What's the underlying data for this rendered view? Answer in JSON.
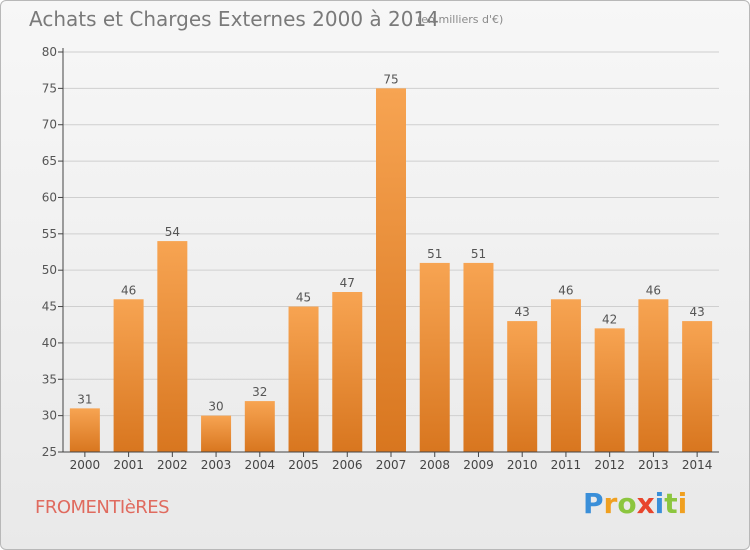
{
  "title": "Achats et Charges Externes 2000 à 2014",
  "subtitle": "(en milliers d'€)",
  "commune": "FROMENTIèRES",
  "brand": {
    "letters": [
      {
        "ch": "P",
        "color": "#3a8fd9"
      },
      {
        "ch": "r",
        "color": "#f0a020"
      },
      {
        "ch": "o",
        "color": "#8cc63f"
      },
      {
        "ch": "x",
        "color": "#e8452c"
      },
      {
        "ch": "i",
        "color": "#3a8fd9"
      },
      {
        "ch": "t",
        "color": "#8cc63f"
      },
      {
        "ch": "i",
        "color": "#f0a020"
      }
    ]
  },
  "colors": {
    "bar_top": "#f7a452",
    "bar_bottom": "#d8761f",
    "axis": "#444444",
    "grid": "#cfcfcf"
  },
  "chart_data": {
    "type": "bar",
    "categories": [
      "2000",
      "2001",
      "2002",
      "2003",
      "2004",
      "2005",
      "2006",
      "2007",
      "2008",
      "2009",
      "2010",
      "2011",
      "2012",
      "2013",
      "2014"
    ],
    "values": [
      31,
      46,
      54,
      30,
      32,
      45,
      47,
      75,
      51,
      51,
      43,
      46,
      42,
      46,
      43
    ],
    "ylim": [
      25,
      80
    ],
    "yticks": [
      25,
      30,
      35,
      40,
      45,
      50,
      55,
      60,
      65,
      70,
      75,
      80
    ],
    "grid": true,
    "title": "Achats et Charges Externes 2000 à 2014",
    "subtitle": "(en milliers d'€)"
  }
}
